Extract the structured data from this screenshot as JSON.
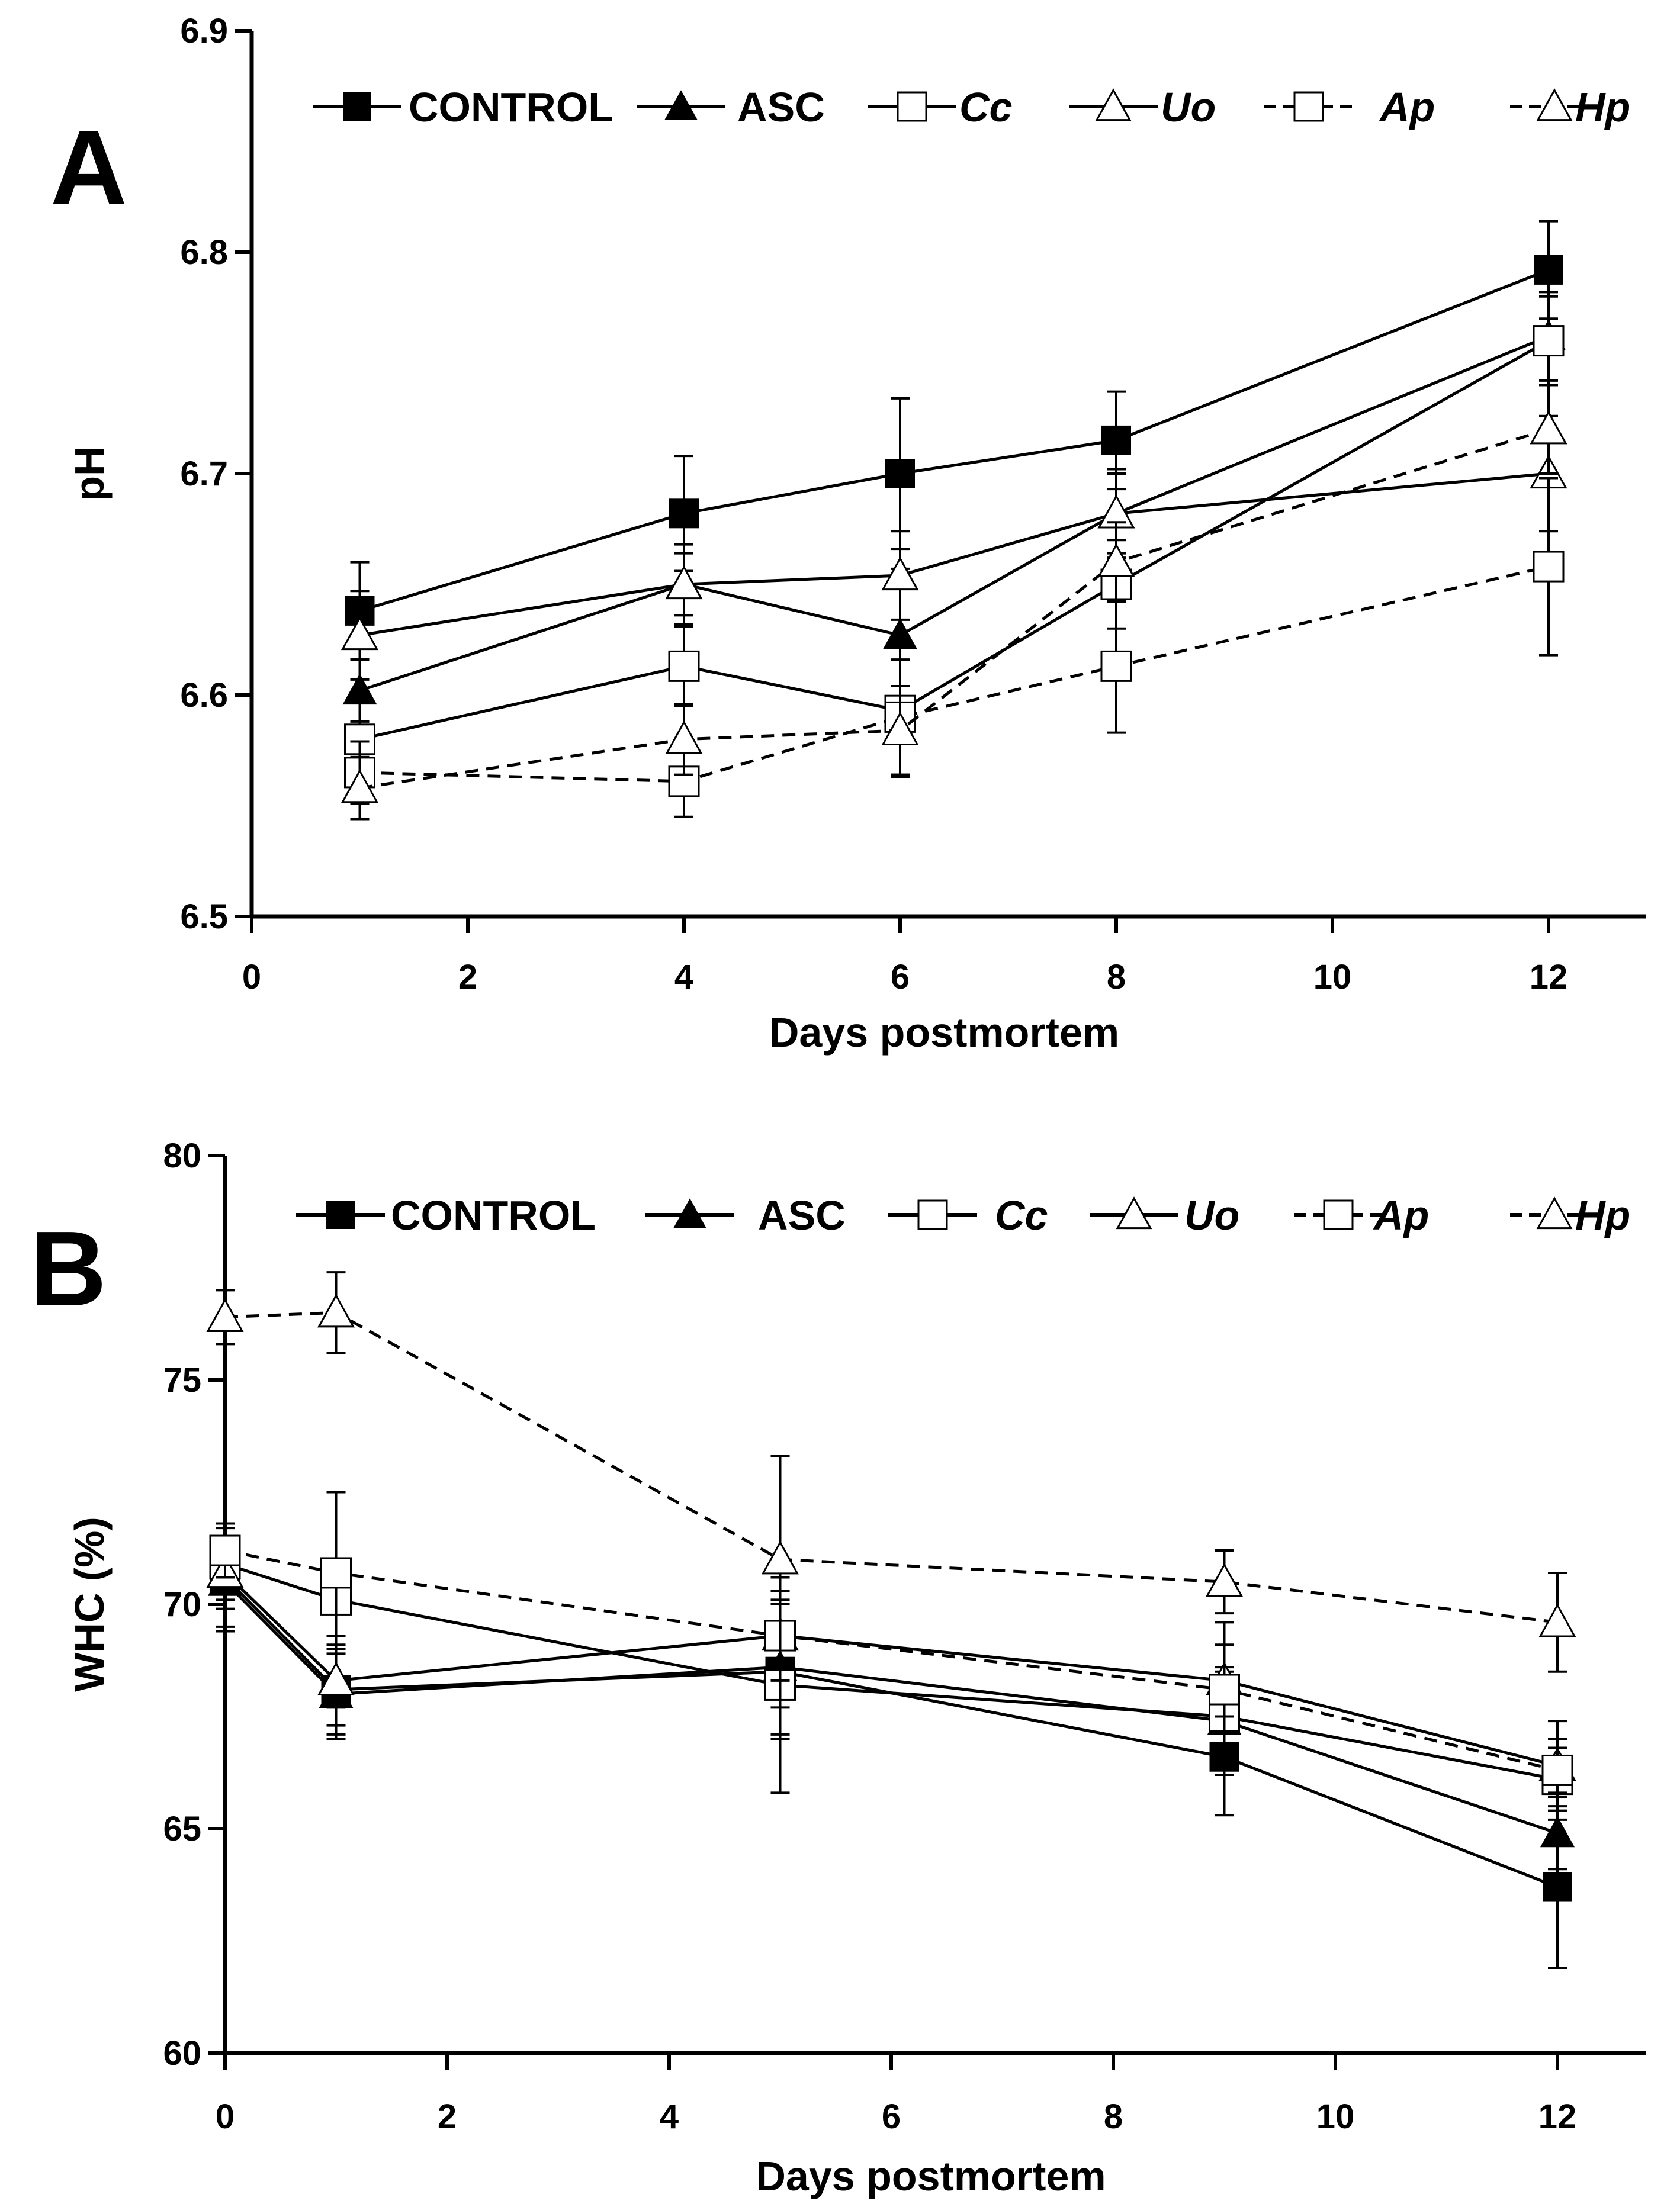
{
  "chart_data": [
    {
      "type": "line",
      "panel_label": "A",
      "xlabel": "Days postmortem",
      "ylabel": "pH",
      "xlim": [
        0,
        13
      ],
      "ylim": [
        6.5,
        6.9
      ],
      "x_ticks": [
        "0",
        "2",
        "4",
        "6",
        "8",
        "10",
        "12"
      ],
      "y_ticks": [
        "6.5",
        "6.6",
        "6.7",
        "6.8",
        "6.9"
      ],
      "legend_position": "top",
      "x": [
        1,
        4,
        6,
        8,
        12
      ],
      "series": [
        {
          "name": "CONTROL",
          "italic": false,
          "marker": "square",
          "fill": "#000000",
          "dashed": false,
          "values": [
            6.638,
            6.682,
            6.7,
            6.715,
            6.792
          ],
          "errors": [
            0.022,
            0.026,
            0.034,
            0.022,
            0.022
          ]
        },
        {
          "name": "ASC",
          "italic": false,
          "marker": "triangle",
          "fill": "#000000",
          "dashed": false,
          "values": [
            6.602,
            6.65,
            6.627,
            6.682,
            6.762
          ],
          "errors": [
            0.014,
            0.014,
            0.03,
            0.018,
            0.02
          ]
        },
        {
          "name": "Cc",
          "italic": true,
          "marker": "square",
          "fill": "#ffffff",
          "dashed": false,
          "values": [
            6.58,
            6.613,
            6.593,
            6.65,
            6.76
          ],
          "errors": [
            0.018,
            0.018,
            0.03,
            0.02,
            0.02
          ]
        },
        {
          "name": "Uo",
          "italic": true,
          "marker": "triangle",
          "fill": "#ffffff",
          "dashed": false,
          "values": [
            6.627,
            6.65,
            6.654,
            6.682,
            6.7
          ],
          "errors": [
            0.02,
            0.018,
            0.02,
            0.02,
            0.026
          ]
        },
        {
          "name": "Ap",
          "italic": true,
          "marker": "square",
          "fill": "#ffffff",
          "dashed": true,
          "values": [
            6.565,
            6.561,
            6.59,
            6.613,
            6.658
          ],
          "errors": [
            0.014,
            0.016,
            0.026,
            0.03,
            0.04
          ]
        },
        {
          "name": "Hp",
          "italic": true,
          "marker": "triangle",
          "fill": "#ffffff",
          "dashed": true,
          "values": [
            6.558,
            6.58,
            6.584,
            6.66,
            6.72
          ],
          "errors": [
            0.014,
            0.016,
            0.02,
            0.018,
            0.02
          ]
        }
      ]
    },
    {
      "type": "line",
      "panel_label": "B",
      "xlabel": "Days postmortem",
      "ylabel": "WHC (%)",
      "xlim": [
        0,
        13
      ],
      "ylim": [
        60,
        80
      ],
      "x_ticks": [
        "0",
        "2",
        "4",
        "6",
        "8",
        "10",
        "12"
      ],
      "y_ticks": [
        "60",
        "65",
        "70",
        "75",
        "80"
      ],
      "legend_position": "top",
      "x": [
        0,
        1,
        5,
        9,
        12
      ],
      "series": [
        {
          "name": "CONTROL",
          "italic": false,
          "marker": "square",
          "fill": "#000000",
          "dashed": false,
          "values": [
            70.6,
            68.1,
            68.5,
            66.6,
            63.7
          ],
          "errors": [
            1.2,
            1.0,
            1.5,
            1.3,
            1.8
          ]
        },
        {
          "name": "ASC",
          "italic": false,
          "marker": "triangle",
          "fill": "#000000",
          "dashed": false,
          "values": [
            70.5,
            68.0,
            68.6,
            67.4,
            64.9
          ],
          "errors": [
            1.0,
            1.0,
            1.5,
            1.2,
            0.8
          ]
        },
        {
          "name": "Cc",
          "italic": true,
          "marker": "square",
          "fill": "#ffffff",
          "dashed": false,
          "values": [
            70.9,
            70.1,
            68.2,
            67.5,
            66.1
          ],
          "errors": [
            0.8,
            2.4,
            2.4,
            1.0,
            0.7
          ]
        },
        {
          "name": "Uo",
          "italic": true,
          "marker": "triangle",
          "fill": "#ffffff",
          "dashed": false,
          "values": [
            70.7,
            68.3,
            69.3,
            68.3,
            66.4
          ],
          "errors": [
            0.8,
            1.0,
            1.0,
            0.8,
            0.6
          ]
        },
        {
          "name": "Ap",
          "italic": true,
          "marker": "square",
          "fill": "#ffffff",
          "dashed": true,
          "values": [
            71.2,
            70.7,
            69.3,
            68.1,
            66.3
          ],
          "errors": [
            0.6,
            1.8,
            1.6,
            1.5,
            1.1
          ]
        },
        {
          "name": "Hp",
          "italic": true,
          "marker": "triangle",
          "fill": "#ffffff",
          "dashed": true,
          "values": [
            76.4,
            76.5,
            71.0,
            70.5,
            69.6
          ],
          "errors": [
            0.6,
            0.9,
            2.3,
            0.7,
            1.1
          ]
        }
      ]
    }
  ]
}
